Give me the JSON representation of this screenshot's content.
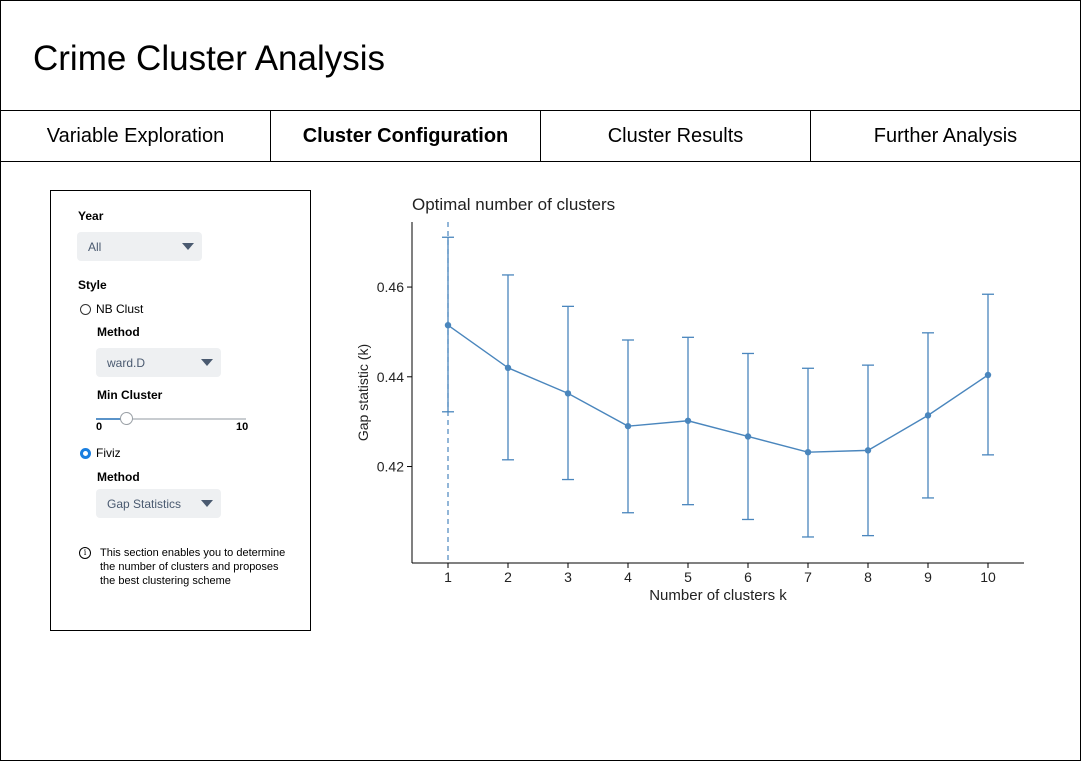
{
  "app": {
    "title": "Crime Cluster Analysis"
  },
  "tabs": [
    {
      "label": "Variable Exploration",
      "active": false
    },
    {
      "label": "Cluster Configuration",
      "active": true
    },
    {
      "label": "Cluster Results",
      "active": false
    },
    {
      "label": "Further Analysis",
      "active": false
    }
  ],
  "sidebar": {
    "year": {
      "label": "Year",
      "value": "All"
    },
    "style": {
      "label": "Style",
      "nbclust": {
        "label": "NB Clust",
        "selected": false,
        "method": {
          "label": "Method",
          "value": "ward.D"
        },
        "min_cluster": {
          "label": "Min Cluster",
          "min_label": "0",
          "max_label": "10",
          "min": 0,
          "max": 10,
          "value": 2
        }
      },
      "fviz": {
        "label": "Fiviz",
        "selected": true,
        "method": {
          "label": "Method",
          "value": "Gap Statistics"
        }
      }
    },
    "info": {
      "text": "This section enables you to determine the number of clusters and proposes the best clustering scheme"
    }
  },
  "chart_data": {
    "type": "line",
    "title": "Optimal number of clusters",
    "xlabel": "Number of clusters k",
    "ylabel": "Gap statistic (k)",
    "x": [
      1,
      2,
      3,
      4,
      5,
      6,
      7,
      8,
      9,
      10
    ],
    "y": [
      0.4515,
      0.442,
      0.4363,
      0.429,
      0.4302,
      0.4267,
      0.4232,
      0.4236,
      0.4314,
      0.4404
    ],
    "y_lower": [
      0.4322,
      0.4215,
      0.4171,
      0.4097,
      0.4115,
      0.4082,
      0.4043,
      0.4046,
      0.413,
      0.4226
    ],
    "y_upper": [
      0.4711,
      0.4627,
      0.4557,
      0.4482,
      0.4488,
      0.4452,
      0.4419,
      0.4426,
      0.4498,
      0.4584
    ],
    "optimal_k": 1,
    "yticks": [
      0.42,
      0.44,
      0.46
    ],
    "ytick_labels": [
      "0.42",
      "0.44",
      "0.46"
    ],
    "xtick_labels": [
      "1",
      "2",
      "3",
      "4",
      "5",
      "6",
      "7",
      "8",
      "9",
      "10"
    ],
    "ylim": [
      0.3985,
      0.4745
    ],
    "xlim": [
      0.4,
      10.6
    ],
    "color": "#4a86bd",
    "grid": false
  }
}
